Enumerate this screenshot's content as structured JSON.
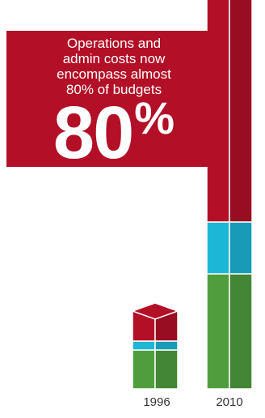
{
  "callout": {
    "text_lines": [
      "Operations and",
      "admin costs now",
      "encompass almost",
      "80% of budgets"
    ],
    "big_value": "80",
    "big_unit": "%"
  },
  "colors": {
    "operations_admin": "#b30f27",
    "middle_segment": "#1cb6d6",
    "bottom_segment": "#4f9e3e",
    "callout_bg": "#b30f27"
  },
  "chart_data": {
    "type": "bar",
    "stacked": true,
    "categories": [
      "1996",
      "2010"
    ],
    "series": [
      {
        "values": [
          48,
          142
        ],
        "color": "#4f9e3e"
      },
      {
        "values": [
          11,
          64
        ],
        "color": "#1cb6d6"
      },
      {
        "values": [
          37,
          468
        ],
        "color": "#b30f27"
      }
    ],
    "title": "",
    "xlabel": "",
    "ylabel": "",
    "grid": false,
    "legend": "none"
  }
}
